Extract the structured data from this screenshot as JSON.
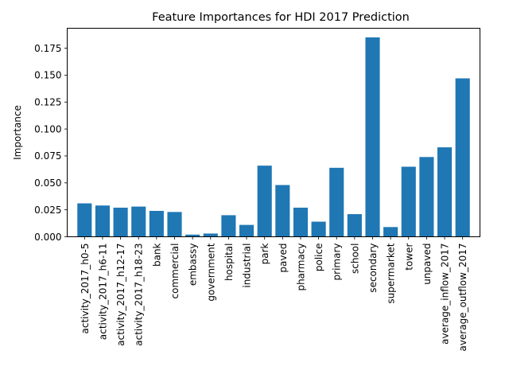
{
  "chart_data": {
    "type": "bar",
    "title": "Feature Importances for HDI 2017 Prediction",
    "xlabel": "",
    "ylabel": "Importance",
    "ylim": [
      0,
      0.1935
    ],
    "yticks": [
      0.0,
      0.025,
      0.05,
      0.075,
      0.1,
      0.125,
      0.15,
      0.175
    ],
    "ytick_labels": [
      "0.000",
      "0.025",
      "0.050",
      "0.075",
      "0.100",
      "0.125",
      "0.150",
      "0.175"
    ],
    "grid": false,
    "bar_color": "#1f77b4",
    "categories": [
      "activity_2017_h0-5",
      "activity_2017_h6-11",
      "activity_2017_h12-17",
      "activity_2017_h18-23",
      "bank",
      "commercial",
      "embassy",
      "government",
      "hospital",
      "industrial",
      "park",
      "paved",
      "pharmacy",
      "police",
      "primary",
      "school",
      "secondary",
      "supermarket",
      "tower",
      "unpaved",
      "average_inflow_2017",
      "average_outflow_2017"
    ],
    "values": [
      0.031,
      0.029,
      0.027,
      0.028,
      0.024,
      0.023,
      0.002,
      0.003,
      0.02,
      0.011,
      0.066,
      0.048,
      0.027,
      0.014,
      0.064,
      0.021,
      0.185,
      0.009,
      0.065,
      0.074,
      0.083,
      0.147
    ]
  }
}
